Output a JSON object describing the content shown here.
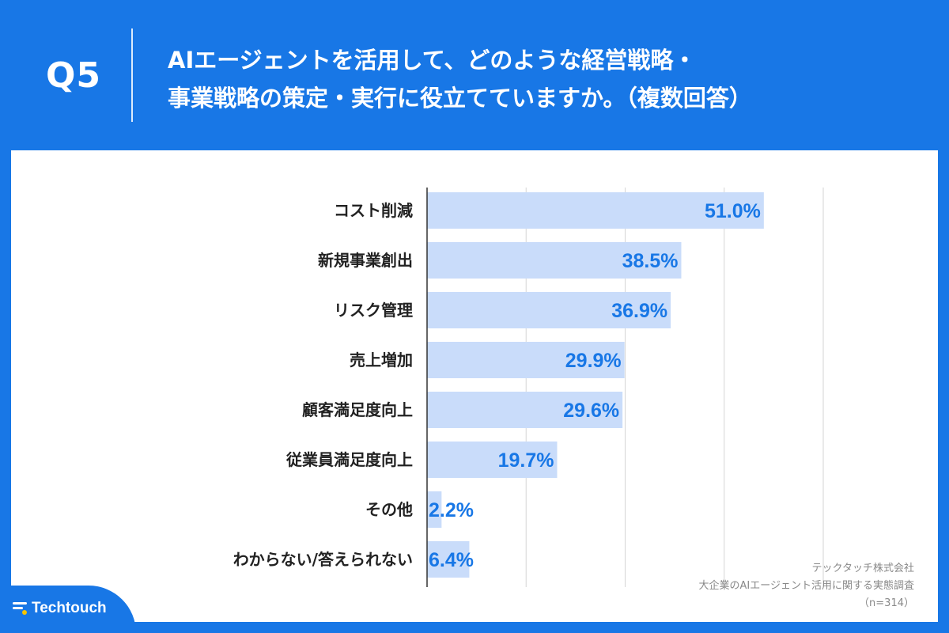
{
  "header": {
    "question": "Q5",
    "title_line1": "AIエージェントを活用して、どのような経営戦略・",
    "title_line2": "事業戦略の策定・実行に役立てていますか。（複数回答）"
  },
  "chart_data": {
    "type": "bar",
    "orientation": "horizontal",
    "categories": [
      "コスト削減",
      "新規事業創出",
      "リスク管理",
      "売上増加",
      "顧客満足度向上",
      "従業員満足度向上",
      "その他",
      "わからない/答えられない"
    ],
    "values": [
      51.0,
      38.5,
      36.9,
      29.9,
      29.6,
      19.7,
      2.2,
      6.4
    ],
    "data_labels": [
      "51.0%",
      "38.5%",
      "36.9%",
      "29.9%",
      "29.6%",
      "19.7%",
      "2.2%",
      "6.4%"
    ],
    "xlim": [
      0,
      60
    ],
    "gridlines": true,
    "grid_step": 15,
    "bar_color": "#c9dcfa",
    "label_color": "#1877e6"
  },
  "footer": {
    "company": "テックタッチ株式会社",
    "survey": "大企業のAIエージェント活用に関する実態調査",
    "sample": "（n=314）"
  },
  "brand": {
    "name": "Techtouch",
    "icon": "techtouch-logo-icon",
    "bg_color": "#1877e6"
  }
}
